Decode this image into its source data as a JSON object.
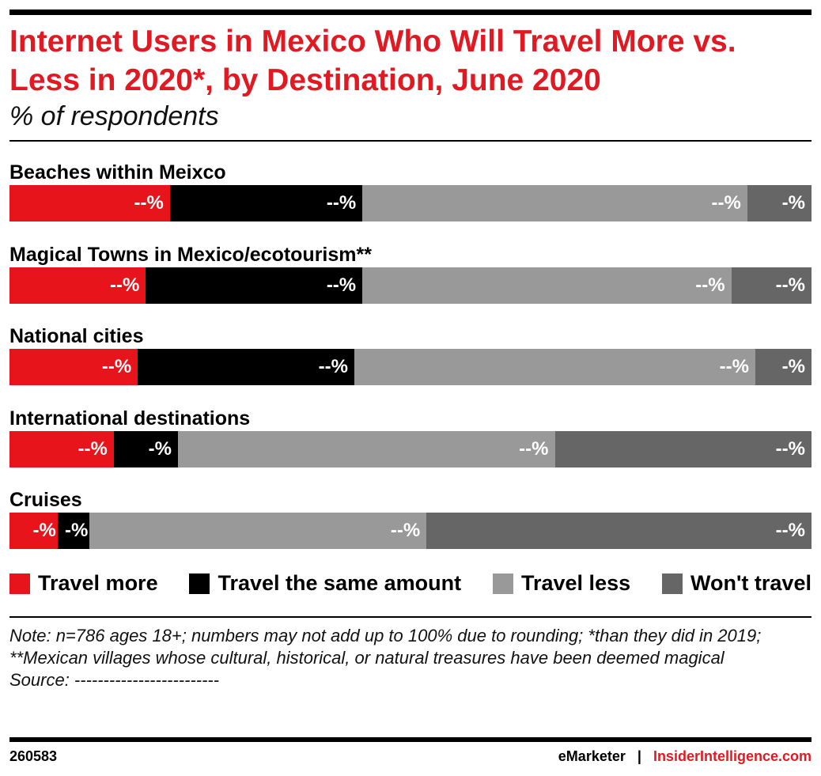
{
  "chart_data": {
    "type": "bar",
    "orientation": "horizontal",
    "stacked": true,
    "title": "Internet Users in Mexico Who Will Travel More vs. Less in 2020*, by Destination, June 2020",
    "subtitle": "% of respondents",
    "categories": [
      "Beaches within Meixco",
      "Magical Towns in Mexico/ecotourism**",
      "National cities",
      "International destinations",
      "Cruises"
    ],
    "series": [
      {
        "name": "Travel more",
        "color": "#e8141c",
        "values": [
          20,
          17,
          16,
          13,
          6
        ]
      },
      {
        "name": "Travel the same amount",
        "color": "#000000",
        "values": [
          24,
          27,
          27,
          8,
          4
        ]
      },
      {
        "name": "Travel less",
        "color": "#999999",
        "values": [
          48,
          46,
          50,
          47,
          42
        ]
      },
      {
        "name": "Won't travel",
        "color": "#666666",
        "values": [
          8,
          10,
          7,
          32,
          48
        ]
      }
    ],
    "data_labels": [
      [
        "--%",
        "--%",
        "--%",
        "-%"
      ],
      [
        "--%",
        "--%",
        "--%",
        "--%"
      ],
      [
        "--%",
        "--%",
        "--%",
        "-%"
      ],
      [
        "--%",
        "-%",
        "--%",
        "--%"
      ],
      [
        "-%",
        "-%",
        "--%",
        "--%"
      ]
    ],
    "xlim": [
      0,
      100
    ],
    "legend_position": "bottom"
  },
  "note": "Note: n=786 ages 18+; numbers may not add up to 100% due to rounding; *than they did in 2019; **Mexican villages whose cultural, historical, or natural treasures have been deemed magical",
  "source": "Source: -------------------------",
  "footer": {
    "chart_id": "260583",
    "brand": "eMarketer",
    "separator": "|",
    "site": "InsiderIntelligence.com"
  }
}
